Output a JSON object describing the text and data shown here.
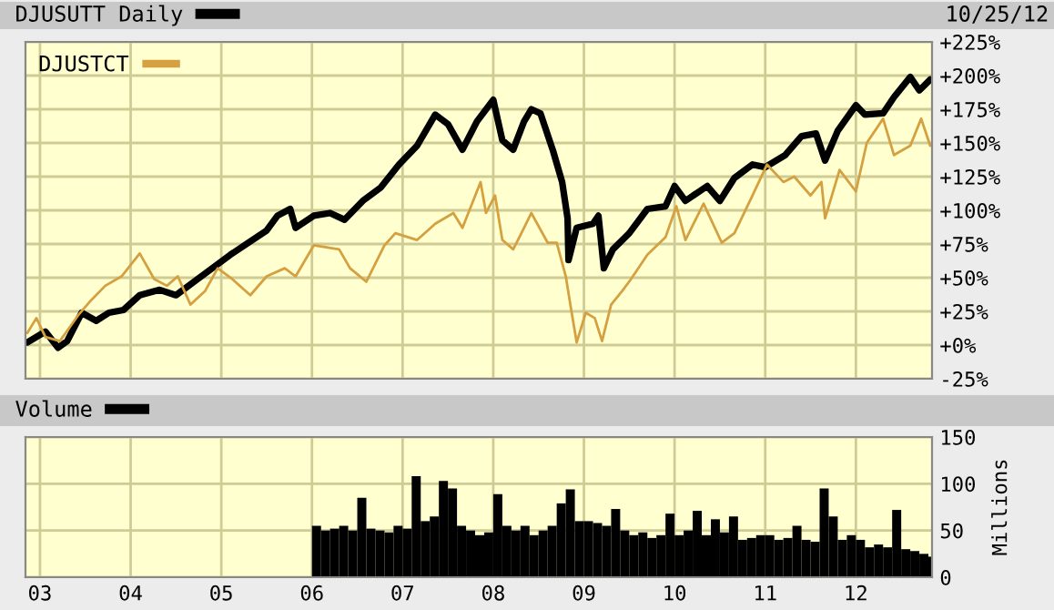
{
  "chart_data": [
    {
      "type": "line",
      "annotations": [
        "10/25/12"
      ],
      "legend": "top left",
      "grid": true,
      "tick_labels": "y",
      "xlim": [
        2002.84,
        2012.84
      ],
      "xticks": [
        {
          "value": 2003,
          "label": null
        },
        {
          "value": 2004,
          "label": null
        },
        {
          "value": 2005,
          "label": null
        },
        {
          "value": 2006,
          "label": null
        },
        {
          "value": 2007,
          "label": null
        },
        {
          "value": 2008,
          "label": null
        },
        {
          "value": 2009,
          "label": null
        },
        {
          "value": 2010,
          "label": null
        },
        {
          "value": 2011,
          "label": null
        },
        {
          "value": 2012,
          "label": null
        }
      ],
      "ylim": [
        -25,
        225
      ],
      "yticks": [
        {
          "value": -25,
          "label": "-25%"
        },
        {
          "value": 0,
          "label": "+0%"
        },
        {
          "value": 25,
          "label": "+25%"
        },
        {
          "value": 50,
          "label": "+50%"
        },
        {
          "value": 75,
          "label": "+75%"
        },
        {
          "value": 100,
          "label": "+100%"
        },
        {
          "value": 125,
          "label": "+125%"
        },
        {
          "value": 150,
          "label": "+150%"
        },
        {
          "value": 175,
          "label": "+175%"
        },
        {
          "value": 200,
          "label": "+200%"
        },
        {
          "value": 225,
          "label": "+225%"
        }
      ],
      "series": [
        {
          "name": "DJUSUTT Daily",
          "color": "#000000",
          "x": [
            2002.86,
            2002.96,
            2003.06,
            2003.2,
            2003.3,
            2003.46,
            2003.62,
            2003.76,
            2003.92,
            2004.1,
            2004.32,
            2004.5,
            2004.7,
            2004.9,
            2005.1,
            2005.3,
            2005.5,
            2005.62,
            2005.76,
            2005.82,
            2006.02,
            2006.2,
            2006.36,
            2006.56,
            2006.76,
            2006.96,
            2007.16,
            2007.36,
            2007.5,
            2007.66,
            2007.82,
            2008.0,
            2008.1,
            2008.22,
            2008.34,
            2008.42,
            2008.52,
            2008.66,
            2008.76,
            2008.82,
            2008.83,
            2008.92,
            2009.1,
            2009.16,
            2009.22,
            2009.32,
            2009.5,
            2009.7,
            2009.9,
            2010.0,
            2010.12,
            2010.36,
            2010.5,
            2010.66,
            2010.86,
            2011.0,
            2011.22,
            2011.4,
            2011.56,
            2011.66,
            2011.8,
            2012.0,
            2012.1,
            2012.3,
            2012.42,
            2012.6,
            2012.7,
            2012.82
          ],
          "values": [
            2,
            6,
            10,
            -2,
            3,
            24,
            18,
            24,
            26,
            37,
            41,
            37,
            47,
            57,
            67,
            76,
            85,
            96,
            101,
            87,
            96,
            98,
            93,
            107,
            117,
            134,
            148,
            171,
            164,
            145,
            166,
            182,
            152,
            145,
            166,
            175,
            172,
            144,
            121,
            94,
            63,
            87,
            90,
            96,
            57,
            71,
            83,
            101,
            103,
            118,
            107,
            118,
            107,
            124,
            134,
            132,
            141,
            155,
            157,
            137,
            159,
            178,
            171,
            172,
            184,
            199,
            189,
            197
          ]
        },
        {
          "name": "DJUSTCT",
          "color": "#d4a040",
          "x": [
            2002.86,
            2002.96,
            2003.06,
            2003.22,
            2003.42,
            2003.56,
            2003.72,
            2003.9,
            2004.1,
            2004.26,
            2004.4,
            2004.52,
            2004.66,
            2004.82,
            2004.96,
            2005.12,
            2005.32,
            2005.5,
            2005.7,
            2005.82,
            2006.02,
            2006.3,
            2006.42,
            2006.6,
            2006.8,
            2006.92,
            2007.16,
            2007.36,
            2007.56,
            2007.66,
            2007.86,
            2007.92,
            2008.02,
            2008.1,
            2008.22,
            2008.34,
            2008.42,
            2008.6,
            2008.7,
            2008.8,
            2008.86,
            2008.92,
            2009.02,
            2009.12,
            2009.2,
            2009.3,
            2009.42,
            2009.52,
            2009.7,
            2009.9,
            2010.02,
            2010.12,
            2010.32,
            2010.52,
            2010.66,
            2010.86,
            2011.02,
            2011.2,
            2011.32,
            2011.5,
            2011.62,
            2011.66,
            2011.82,
            2012.0,
            2012.12,
            2012.3,
            2012.42,
            2012.6,
            2012.72,
            2012.82
          ],
          "values": [
            9,
            20,
            6,
            3,
            22,
            33,
            44,
            51,
            68,
            49,
            44,
            51,
            30,
            40,
            57,
            49,
            37,
            51,
            57,
            51,
            74,
            71,
            57,
            47,
            74,
            83,
            78,
            90,
            98,
            87,
            121,
            98,
            111,
            78,
            71,
            87,
            98,
            76,
            76,
            51,
            26,
            2,
            24,
            20,
            3,
            30,
            40,
            49,
            67,
            80,
            103,
            78,
            105,
            76,
            83,
            111,
            134,
            121,
            125,
            111,
            121,
            94,
            130,
            114,
            150,
            168,
            141,
            148,
            168,
            148
          ]
        }
      ]
    },
    {
      "type": "bar",
      "ylabel": "Millions",
      "legend": "top left",
      "grid": true,
      "xlim": [
        2002.84,
        2012.84
      ],
      "xticks": [
        {
          "value": 2003,
          "label": "03"
        },
        {
          "value": 2004,
          "label": "04"
        },
        {
          "value": 2005,
          "label": "05"
        },
        {
          "value": 2006,
          "label": "06"
        },
        {
          "value": 2007,
          "label": "07"
        },
        {
          "value": 2008,
          "label": "08"
        },
        {
          "value": 2009,
          "label": "09"
        },
        {
          "value": 2010,
          "label": "10"
        },
        {
          "value": 2011,
          "label": "11"
        },
        {
          "value": 2012,
          "label": "12"
        }
      ],
      "ylim": [
        0,
        150
      ],
      "yticks": [
        0,
        50,
        100,
        150
      ],
      "series": [
        {
          "name": "Volume",
          "color": "#000000",
          "x": [
            2006.0,
            2006.1,
            2006.2,
            2006.3,
            2006.4,
            2006.5,
            2006.6,
            2006.7,
            2006.8,
            2006.9,
            2007.0,
            2007.1,
            2007.2,
            2007.3,
            2007.4,
            2007.5,
            2007.6,
            2007.7,
            2007.8,
            2007.9,
            2008.0,
            2008.1,
            2008.2,
            2008.3,
            2008.4,
            2008.5,
            2008.6,
            2008.7,
            2008.8,
            2008.9,
            2009.0,
            2009.1,
            2009.2,
            2009.3,
            2009.4,
            2009.5,
            2009.6,
            2009.7,
            2009.8,
            2009.9,
            2010.0,
            2010.1,
            2010.2,
            2010.3,
            2010.4,
            2010.5,
            2010.6,
            2010.7,
            2010.8,
            2010.9,
            2011.0,
            2011.1,
            2011.2,
            2011.3,
            2011.4,
            2011.5,
            2011.6,
            2011.7,
            2011.8,
            2011.9,
            2012.0,
            2012.1,
            2012.2,
            2012.3,
            2012.4,
            2012.5,
            2012.6,
            2012.7,
            2012.8
          ],
          "values": [
            55,
            50,
            52,
            55,
            50,
            85,
            52,
            50,
            48,
            55,
            52,
            108,
            60,
            65,
            103,
            95,
            55,
            50,
            45,
            48,
            89,
            55,
            50,
            55,
            45,
            50,
            55,
            79,
            94,
            60,
            60,
            58,
            55,
            73,
            50,
            45,
            48,
            42,
            45,
            68,
            45,
            50,
            71,
            45,
            62,
            48,
            65,
            40,
            42,
            45,
            45,
            40,
            42,
            55,
            40,
            38,
            95,
            65,
            40,
            45,
            40,
            32,
            35,
            32,
            72,
            30,
            28,
            25,
            22
          ]
        }
      ]
    }
  ]
}
